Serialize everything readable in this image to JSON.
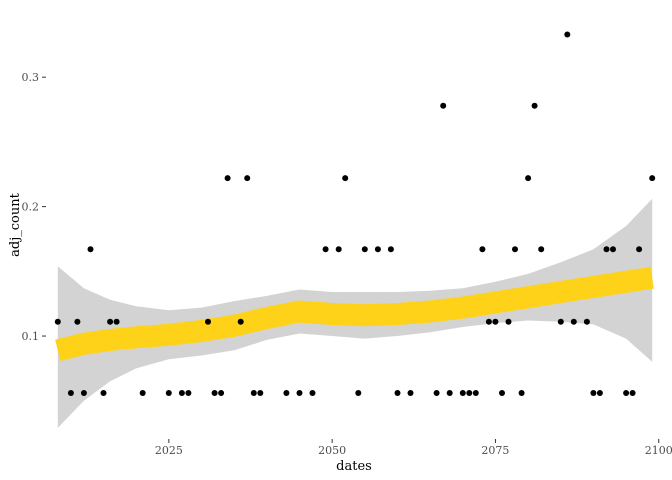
{
  "chart_data": {
    "type": "scatter",
    "xlabel": "dates",
    "ylabel": "adj_count",
    "xlim": [
      2006.5,
      2100.5
    ],
    "ylim": [
      0.022,
      0.355
    ],
    "x_ticks": [
      2025,
      2050,
      2075,
      2100
    ],
    "y_ticks": [
      0.1,
      0.2,
      0.3
    ],
    "x_tick_labels": [
      "2025",
      "2050",
      "2075",
      "2100"
    ],
    "y_tick_labels": [
      "0.1",
      "0.2",
      "0.3"
    ],
    "grid": false,
    "legend": "none",
    "colors": {
      "points": "#000000",
      "smooth_line": "#ffd21a",
      "confidence_band": "#d3d3d3"
    },
    "points": [
      {
        "x": 2008,
        "y": 0.111
      },
      {
        "x": 2010,
        "y": 0.056
      },
      {
        "x": 2011,
        "y": 0.111
      },
      {
        "x": 2012,
        "y": 0.056
      },
      {
        "x": 2013,
        "y": 0.167
      },
      {
        "x": 2015,
        "y": 0.056
      },
      {
        "x": 2016,
        "y": 0.111
      },
      {
        "x": 2017,
        "y": 0.111
      },
      {
        "x": 2021,
        "y": 0.056
      },
      {
        "x": 2025,
        "y": 0.056
      },
      {
        "x": 2027,
        "y": 0.056
      },
      {
        "x": 2028,
        "y": 0.056
      },
      {
        "x": 2031,
        "y": 0.111
      },
      {
        "x": 2032,
        "y": 0.056
      },
      {
        "x": 2033,
        "y": 0.056
      },
      {
        "x": 2034,
        "y": 0.222
      },
      {
        "x": 2036,
        "y": 0.111
      },
      {
        "x": 2037,
        "y": 0.222
      },
      {
        "x": 2038,
        "y": 0.056
      },
      {
        "x": 2039,
        "y": 0.056
      },
      {
        "x": 2043,
        "y": 0.056
      },
      {
        "x": 2045,
        "y": 0.056
      },
      {
        "x": 2047,
        "y": 0.056
      },
      {
        "x": 2049,
        "y": 0.167
      },
      {
        "x": 2051,
        "y": 0.167
      },
      {
        "x": 2052,
        "y": 0.222
      },
      {
        "x": 2054,
        "y": 0.056
      },
      {
        "x": 2055,
        "y": 0.167
      },
      {
        "x": 2057,
        "y": 0.167
      },
      {
        "x": 2059,
        "y": 0.167
      },
      {
        "x": 2060,
        "y": 0.056
      },
      {
        "x": 2062,
        "y": 0.056
      },
      {
        "x": 2066,
        "y": 0.056
      },
      {
        "x": 2067,
        "y": 0.278
      },
      {
        "x": 2068,
        "y": 0.056
      },
      {
        "x": 2070,
        "y": 0.056
      },
      {
        "x": 2071,
        "y": 0.056
      },
      {
        "x": 2072,
        "y": 0.056
      },
      {
        "x": 2073,
        "y": 0.167
      },
      {
        "x": 2074,
        "y": 0.111
      },
      {
        "x": 2075,
        "y": 0.111
      },
      {
        "x": 2076,
        "y": 0.056
      },
      {
        "x": 2077,
        "y": 0.111
      },
      {
        "x": 2078,
        "y": 0.167
      },
      {
        "x": 2079,
        "y": 0.056
      },
      {
        "x": 2080,
        "y": 0.222
      },
      {
        "x": 2081,
        "y": 0.278
      },
      {
        "x": 2082,
        "y": 0.167
      },
      {
        "x": 2085,
        "y": 0.111
      },
      {
        "x": 2086,
        "y": 0.333
      },
      {
        "x": 2087,
        "y": 0.111
      },
      {
        "x": 2089,
        "y": 0.111
      },
      {
        "x": 2090,
        "y": 0.056
      },
      {
        "x": 2091,
        "y": 0.056
      },
      {
        "x": 2092,
        "y": 0.167
      },
      {
        "x": 2093,
        "y": 0.167
      },
      {
        "x": 2095,
        "y": 0.056
      },
      {
        "x": 2096,
        "y": 0.056
      },
      {
        "x": 2097,
        "y": 0.167
      },
      {
        "x": 2099,
        "y": 0.222
      }
    ],
    "smooth": {
      "x": [
        2008,
        2012,
        2016,
        2020,
        2025,
        2030,
        2035,
        2040,
        2045,
        2050,
        2055,
        2060,
        2065,
        2070,
        2075,
        2080,
        2085,
        2090,
        2095,
        2099
      ],
      "y": [
        0.089,
        0.094,
        0.097,
        0.099,
        0.101,
        0.104,
        0.108,
        0.114,
        0.119,
        0.117,
        0.116,
        0.117,
        0.119,
        0.122,
        0.126,
        0.13,
        0.134,
        0.138,
        0.142,
        0.145
      ],
      "lower": [
        0.029,
        0.05,
        0.065,
        0.075,
        0.082,
        0.085,
        0.089,
        0.097,
        0.102,
        0.1,
        0.098,
        0.1,
        0.103,
        0.107,
        0.11,
        0.112,
        0.111,
        0.109,
        0.098,
        0.08
      ],
      "upper": [
        0.154,
        0.137,
        0.128,
        0.123,
        0.12,
        0.122,
        0.127,
        0.131,
        0.136,
        0.134,
        0.134,
        0.134,
        0.135,
        0.137,
        0.142,
        0.148,
        0.157,
        0.167,
        0.185,
        0.206
      ]
    }
  }
}
